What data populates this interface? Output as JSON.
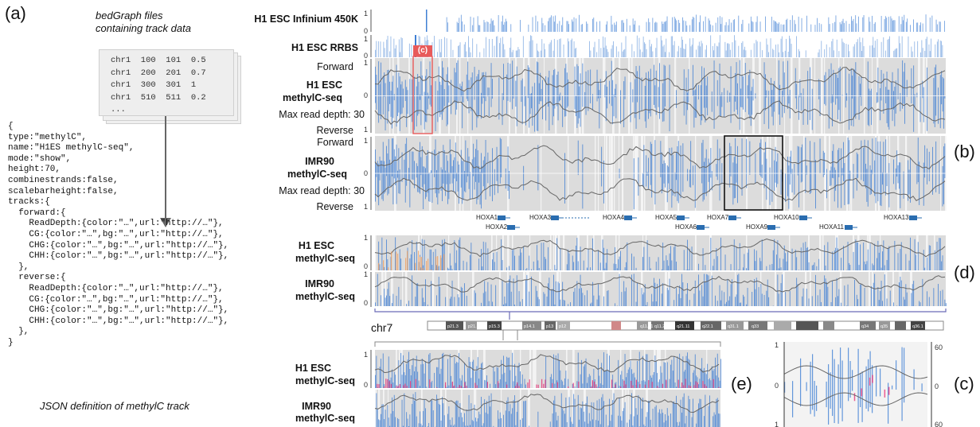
{
  "panels": {
    "a": "(a)",
    "b": "(b)",
    "c_right": "(c)",
    "c_marker": "(c)",
    "d": "(d)",
    "e": "(e)"
  },
  "file_caption_line1": "bedGraph files",
  "file_caption_line2": "containing track data",
  "file_lines": [
    "chr1  100  101  0.5",
    "chr1  200  201  0.7",
    "chr1  300  301  1",
    "chr1  510  511  0.2",
    "..."
  ],
  "json_lines": [
    "{",
    "type:\"methylC\",",
    "name:\"H1ES methylC-seq\",",
    "mode:\"show\",",
    "height:70,",
    "combinestrands:false,",
    "scalebarheight:false,",
    "tracks:{",
    "  forward:{",
    "    ReadDepth:{color:\"…\",url:\"http://…\"},",
    "    CG:{color:\"…\",bg:\"…\",url:\"http://…\"},",
    "    CHG:{color:\"…\",bg:\"…\",url:\"http://…\"},",
    "    CHH:{color:\"…\",bg:\"…\",url:\"http://…\"},",
    "  },",
    "  reverse:{",
    "    ReadDepth:{color:\"…\",url:\"http://…\"},",
    "    CG:{color:\"…\",bg:\"…\",url:\"http://…\"},",
    "    CHG:{color:\"…\",bg:\"…\",url:\"http://…\"},",
    "    CHH:{color:\"…\",bg:\"…\",url:\"http://…\"},",
    "  },",
    "}"
  ],
  "json_caption": "JSON definition of methylC track",
  "tracks": {
    "infinium": "H1 ESC Infinium 450K",
    "rrbs": "H1 ESC RRBS",
    "h1_forward": "Forward",
    "h1_name1": "H1 ESC",
    "h1_name2": "methylC-seq",
    "h1_depth": "Max read depth: 30",
    "h1_reverse": "Reverse",
    "imr_forward": "Forward",
    "imr_name1": "IMR90",
    "imr_name2": "methylC-seq",
    "imr_depth": "Max read depth: 30",
    "imr_reverse": "Reverse",
    "d_h1_1": "H1 ESC",
    "d_h1_2": "methylC-seq",
    "d_imr_1": "IMR90",
    "d_imr_2": "methylC-seq",
    "e_h1_1": "H1 ESC",
    "e_h1_2": "methylC-seq",
    "e_imr_1": "IMR90",
    "e_imr_2": "methylC-seq"
  },
  "ticks": {
    "one": "1",
    "zero": "0",
    "sixty": "60"
  },
  "chromosome": "chr7",
  "bands": [
    "p21.3",
    "p21.2",
    "p15.3",
    "p14.1",
    "p13",
    "p12",
    "q11.21",
    "q11.23",
    "q21.11",
    "q22.1",
    "q31.1",
    "q33",
    "q34",
    "q35",
    "q36.1"
  ],
  "genes": [
    "HOXA1",
    "HOXA2",
    "HOXA3",
    "HOXA4",
    "HOXA5",
    "HOXA6",
    "HOXA7",
    "HOXA9",
    "HOXA10",
    "HOXA11",
    "HOXA13"
  ],
  "colors": {
    "blue": "#3f7fd4",
    "grey_bg": "#d6d6d6",
    "line": "#666666",
    "pink": "#e8357a",
    "marker": "#e85a5a"
  }
}
